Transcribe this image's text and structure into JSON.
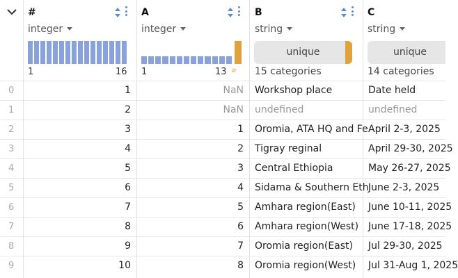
{
  "columns": {
    "hash": {
      "name": "#",
      "type": "integer",
      "min": "1",
      "max": "16"
    },
    "a": {
      "name": "A",
      "type": "integer",
      "min": "1",
      "max": "13",
      "null_symbol": "⌀"
    },
    "b": {
      "name": "B",
      "type": "string",
      "unique_label": "unique",
      "categories": "15 categories"
    },
    "c": {
      "name": "C",
      "type": "string",
      "unique_label": "unique",
      "categories": "14 categories"
    }
  },
  "rows": [
    {
      "idx": "0",
      "hash": "1",
      "a": "NaN",
      "b": "Workshop place",
      "c": "Date held"
    },
    {
      "idx": "1",
      "hash": "2",
      "a": "NaN",
      "b": "undefined",
      "c": "undefined"
    },
    {
      "idx": "2",
      "hash": "3",
      "a": "1",
      "b": "Oromia, ATA HQ and Fe",
      "c": "April 2-3, 2025"
    },
    {
      "idx": "3",
      "hash": "4",
      "a": "2",
      "b": "Tigray reginal",
      "c": "April 29-30, 2025"
    },
    {
      "idx": "4",
      "hash": "5",
      "a": "3",
      "b": "Central Ethiopia",
      "c": "May 26-27, 2025"
    },
    {
      "idx": "5",
      "hash": "6",
      "a": "4",
      "b": "Sidama & Southern Eth",
      "c": "June 2-3, 2025"
    },
    {
      "idx": "6",
      "hash": "7",
      "a": "5",
      "b": "Amhara region(East)",
      "c": "June 10-11, 2025"
    },
    {
      "idx": "7",
      "hash": "8",
      "a": "6",
      "b": "Amhara region(West)",
      "c": "June 17-18, 2025"
    },
    {
      "idx": "8",
      "hash": "9",
      "a": "7",
      "b": "Oromia region(East)",
      "c": "Jul 29-30, 2025"
    },
    {
      "idx": "9",
      "hash": "10",
      "a": "8",
      "b": "Oromia region(West)",
      "c": "Jul 31-Aug 1, 2025"
    }
  ],
  "colors": {
    "accent": "#5b8ad6",
    "histogram": "#8aa2dc",
    "null": "#e0a23a"
  }
}
